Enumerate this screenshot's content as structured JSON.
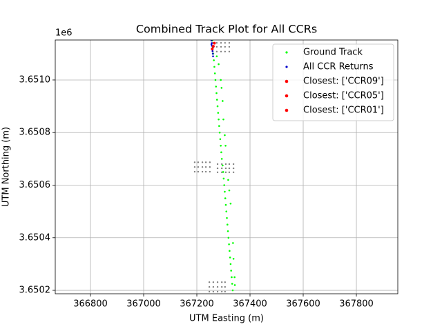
{
  "chart_data": {
    "type": "scatter",
    "title": "Combined Track Plot for All CCRs",
    "x_label": "UTM Easting (m)",
    "y_label": "UTM Northing (m)",
    "y_offset_label": "1e6",
    "xlim": [
      366667.5,
      367955.8
    ],
    "ylim": [
      3650187,
      3651152
    ],
    "xticks": [
      366800,
      367000,
      367200,
      367400,
      367600,
      367800
    ],
    "yticks": [
      {
        "value": 3650200,
        "label": "3.6502"
      },
      {
        "value": 3650400,
        "label": "3.6504"
      },
      {
        "value": 3650600,
        "label": "3.6506"
      },
      {
        "value": 3650800,
        "label": "3.6508"
      },
      {
        "value": 3651000,
        "label": "3.6510"
      }
    ],
    "grid": true,
    "legend": "upper right",
    "series": [
      {
        "color": "#808080",
        "x": [
          367260,
          367275,
          367291,
          367306,
          367322,
          367260,
          367275,
          367291,
          367306,
          367322,
          367260,
          367275,
          367291,
          367306,
          367322,
          367192,
          367205,
          367221,
          367234,
          367249,
          367192,
          367205,
          367221,
          367234,
          367249,
          367192,
          367205,
          367221,
          367234,
          367249,
          367278,
          367294,
          367309,
          367322,
          367338,
          367278,
          367294,
          367309,
          367322,
          367338,
          367278,
          367294,
          367309,
          367322,
          367338,
          367247,
          367262,
          367278,
          367294,
          367306,
          367247,
          367262,
          367278,
          367294,
          367306,
          367247,
          367262,
          367278,
          367294,
          367306
        ],
        "y": [
          3651141,
          3651141,
          3651141,
          3651141,
          3651141,
          3651126,
          3651126,
          3651126,
          3651126,
          3651126,
          3651108,
          3651108,
          3651108,
          3651108,
          3651108,
          3650687,
          3650687,
          3650687,
          3650687,
          3650687,
          3650669,
          3650669,
          3650669,
          3650669,
          3650669,
          3650651,
          3650651,
          3650651,
          3650651,
          3650651,
          3650680,
          3650680,
          3650680,
          3650680,
          3650680,
          3650664,
          3650664,
          3650664,
          3650664,
          3650664,
          3650649,
          3650649,
          3650649,
          3650649,
          3650649,
          3650231,
          3650231,
          3650231,
          3650231,
          3650231,
          3650213,
          3650213,
          3650213,
          3650213,
          3650213,
          3650195,
          3650195,
          3650195,
          3650195,
          3650195
        ]
      },
      {
        "name": "Ground Track",
        "color": "#00ff00",
        "x": [
          367258,
          367260,
          367262,
          367264,
          367266,
          367268,
          367270,
          367272,
          367274,
          367276,
          367278,
          367280,
          367282,
          367284,
          367286,
          367288,
          367290,
          367292,
          367294,
          367297,
          367299,
          367301,
          367303,
          367305,
          367307,
          367309,
          367311,
          367313,
          367315,
          367317,
          367319,
          367321,
          367323,
          367325,
          367327,
          367329,
          367331,
          367333,
          367335,
          367275,
          367282,
          367290,
          367293,
          367297,
          367300,
          367305,
          367308,
          367318,
          367322,
          367327,
          367336,
          367338,
          367342,
          367343
        ],
        "y": [
          3651150,
          3651125,
          3651100,
          3651075,
          3651050,
          3651025,
          3651000,
          3650975,
          3650950,
          3650925,
          3650900,
          3650875,
          3650850,
          3650825,
          3650800,
          3650775,
          3650750,
          3650725,
          3650700,
          3650675,
          3650650,
          3650625,
          3650600,
          3650575,
          3650550,
          3650525,
          3650500,
          3650475,
          3650450,
          3650425,
          3650400,
          3650375,
          3650350,
          3650325,
          3650300,
          3650275,
          3650250,
          3650225,
          3650200,
          3651090,
          3651060,
          3651000,
          3650970,
          3650920,
          3650850,
          3650790,
          3650750,
          3650620,
          3650580,
          3650530,
          3650380,
          3650320,
          3650250,
          3650220
        ]
      },
      {
        "name": "All CCR Returns",
        "color": "#0000cc",
        "x": [
          367255,
          367256,
          367257,
          367258,
          367259,
          367260,
          367261,
          367255,
          367262
        ],
        "y": [
          3651150,
          3651140,
          3651130,
          3651120,
          3651110,
          3651100,
          3651090,
          3651135,
          3651125
        ]
      },
      {
        "name": "Closest: ['CCR09']",
        "color": "#ff0000",
        "x": [
          367262
        ],
        "y": [
          3651128
        ]
      },
      {
        "name": "Closest: ['CCR05']",
        "color": "#ff0000",
        "x": [
          367258
        ],
        "y": [
          3651118
        ]
      },
      {
        "name": "Closest: ['CCR01']",
        "color": "#ff0000",
        "x": [
          367266
        ],
        "y": [
          3651140
        ]
      }
    ]
  }
}
